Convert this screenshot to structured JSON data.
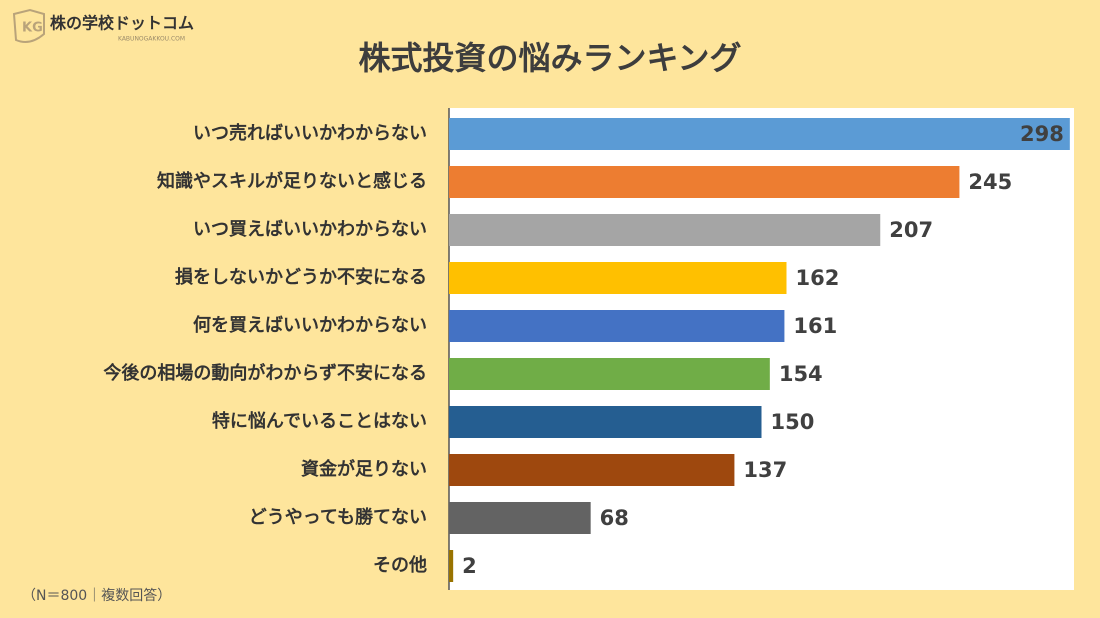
{
  "logo": {
    "name": "株の学校ドットコム",
    "url": "KABUNOGAKKOU.COM"
  },
  "chart_data": {
    "type": "bar",
    "orientation": "horizontal",
    "title": "株式投資の悩みランキング",
    "note": "（N＝800｜複数回答）",
    "categories": [
      "いつ売ればいいかわからない",
      "知識やスキルが足りないと感じる",
      "いつ買えばいいかわからない",
      "損をしないかどうか不安になる",
      "何を買えばいいかわからない",
      "今後の相場の動向がわからず不安になる",
      "特に悩んでいることはない",
      "資金が足りない",
      "どうやっても勝てない",
      "その他"
    ],
    "values": [
      298,
      245,
      207,
      162,
      161,
      154,
      150,
      137,
      68,
      2
    ],
    "colors": [
      "#5b9bd5",
      "#ed7d31",
      "#a5a5a5",
      "#ffc000",
      "#4472c4",
      "#70ad47",
      "#255e91",
      "#9e480e",
      "#636363",
      "#997300"
    ],
    "xlim": [
      0,
      300
    ],
    "grid": false
  }
}
